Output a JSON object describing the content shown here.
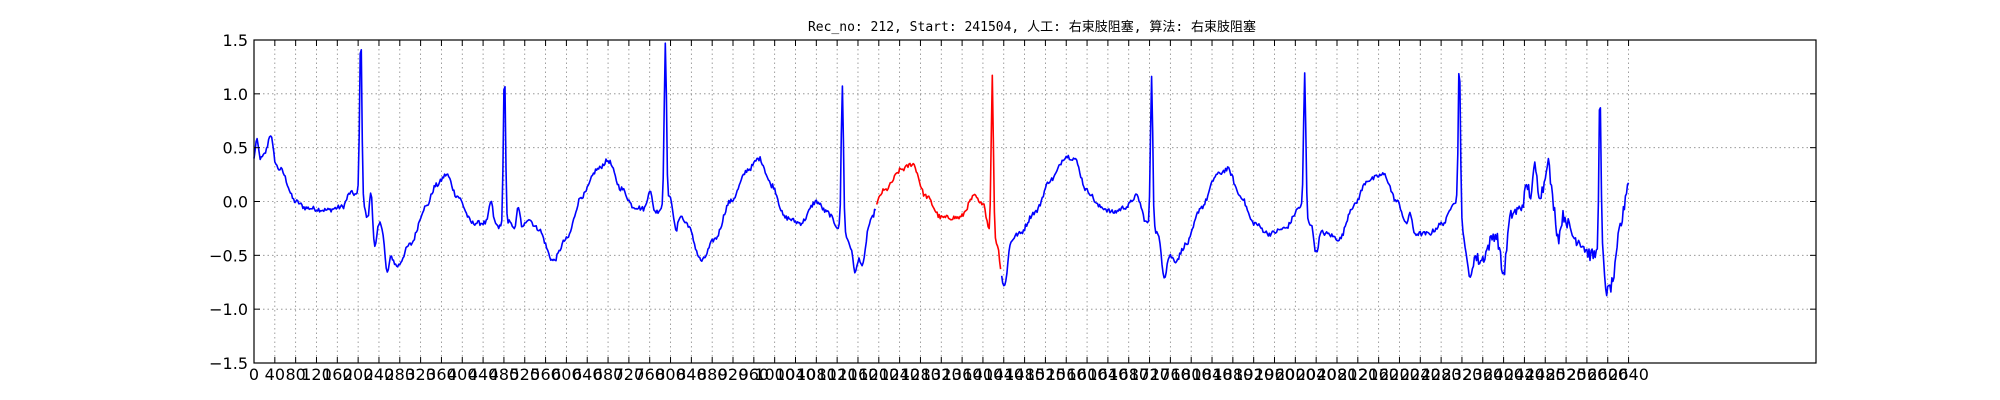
{
  "chart_data": {
    "type": "line",
    "title": "Rec_no: 212, Start: 241504, 人工: 右束肢阻塞, 算法: 右束肢阻塞",
    "xlabel": "",
    "ylabel": "",
    "xlim": [
      0,
      3000
    ],
    "ylim": [
      -1.5,
      1.5
    ],
    "yticks": [
      -1.5,
      -1.0,
      -0.5,
      0.0,
      0.5,
      1.0,
      1.5
    ],
    "ytick_labels": [
      "−1.5",
      "−1.0",
      "−0.5",
      "0.0",
      "0.5",
      "1.0",
      "1.5"
    ],
    "xtick_step": 40,
    "xtick_max": 2640,
    "grid": true,
    "grid_style": "dotted",
    "colors": {
      "normal": "#0000ff",
      "highlight": "#ff0000",
      "axes": "#000000",
      "grid": "#888888"
    },
    "highlight_segment": {
      "x_start": 1195,
      "x_end": 1435
    },
    "baseline": {
      "start_x": 0,
      "end_x": 2640,
      "knots": [
        [
          0,
          0.3
        ],
        [
          25,
          0.45
        ],
        [
          50,
          0.3
        ],
        [
          80,
          0.0
        ],
        [
          100,
          -0.06
        ],
        [
          140,
          -0.08
        ],
        [
          170,
          -0.05
        ],
        [
          185,
          0.08
        ],
        [
          205,
          0.05
        ],
        [
          220,
          -0.18
        ],
        [
          245,
          -0.2
        ],
        [
          275,
          -0.6
        ],
        [
          300,
          -0.4
        ],
        [
          330,
          -0.05
        ],
        [
          350,
          0.15
        ],
        [
          370,
          0.25
        ],
        [
          390,
          0.05
        ],
        [
          420,
          -0.2
        ],
        [
          455,
          -0.2
        ],
        [
          480,
          -0.25
        ],
        [
          510,
          0.0
        ],
        [
          525,
          -0.15
        ],
        [
          545,
          -0.25
        ],
        [
          575,
          -0.55
        ],
        [
          600,
          -0.35
        ],
        [
          630,
          0.05
        ],
        [
          660,
          0.3
        ],
        [
          680,
          0.38
        ],
        [
          705,
          0.12
        ],
        [
          730,
          -0.05
        ],
        [
          770,
          -0.1
        ],
        [
          805,
          0.05
        ],
        [
          830,
          -0.2
        ],
        [
          860,
          -0.55
        ],
        [
          885,
          -0.35
        ],
        [
          915,
          0.0
        ],
        [
          950,
          0.3
        ],
        [
          970,
          0.4
        ],
        [
          995,
          0.15
        ],
        [
          1020,
          -0.15
        ],
        [
          1050,
          -0.2
        ],
        [
          1080,
          0.0
        ],
        [
          1100,
          -0.1
        ],
        [
          1125,
          -0.25
        ],
        [
          1155,
          -0.45
        ],
        [
          1180,
          -0.2
        ],
        [
          1210,
          0.1
        ],
        [
          1245,
          0.3
        ],
        [
          1265,
          0.35
        ],
        [
          1290,
          0.05
        ],
        [
          1320,
          -0.15
        ],
        [
          1355,
          -0.15
        ],
        [
          1385,
          0.05
        ],
        [
          1400,
          -0.1
        ],
        [
          1420,
          -0.35
        ],
        [
          1440,
          -0.42
        ],
        [
          1470,
          -0.3
        ],
        [
          1500,
          -0.1
        ],
        [
          1530,
          0.2
        ],
        [
          1560,
          0.42
        ],
        [
          1575,
          0.4
        ],
        [
          1600,
          0.1
        ],
        [
          1625,
          -0.05
        ],
        [
          1650,
          -0.1
        ],
        [
          1675,
          -0.05
        ],
        [
          1695,
          0.05
        ],
        [
          1715,
          -0.2
        ],
        [
          1740,
          -0.3
        ],
        [
          1770,
          -0.55
        ],
        [
          1790,
          -0.4
        ],
        [
          1820,
          -0.05
        ],
        [
          1850,
          0.25
        ],
        [
          1870,
          0.3
        ],
        [
          1895,
          0.05
        ],
        [
          1920,
          -0.2
        ],
        [
          1950,
          -0.3
        ],
        [
          1980,
          -0.25
        ],
        [
          2010,
          -0.05
        ],
        [
          2030,
          -0.2
        ],
        [
          2060,
          -0.3
        ],
        [
          2085,
          -0.35
        ],
        [
          2110,
          -0.05
        ],
        [
          2140,
          0.2
        ],
        [
          2170,
          0.25
        ],
        [
          2195,
          0.0
        ],
        [
          2220,
          -0.3
        ],
        [
          2255,
          -0.3
        ],
        [
          2285,
          -0.2
        ],
        [
          2305,
          0.0
        ],
        [
          2330,
          -0.4
        ],
        [
          2355,
          -0.55
        ],
        [
          2385,
          -0.3
        ],
        [
          2420,
          -0.1
        ],
        [
          2450,
          0.0
        ],
        [
          2480,
          0.1
        ],
        [
          2510,
          -0.1
        ],
        [
          2540,
          -0.35
        ],
        [
          2570,
          -0.5
        ],
        [
          2600,
          -0.45
        ],
        [
          2625,
          -0.2
        ],
        [
          2640,
          0.18
        ]
      ]
    },
    "features": [
      {
        "x": 5,
        "amp": 0.25,
        "width": 5
      },
      {
        "x": 32,
        "amp": 0.2,
        "width": 6
      },
      {
        "x": 205,
        "amp": 1.5,
        "width": 3
      },
      {
        "x": 225,
        "amp": 0.3,
        "width": 4
      },
      {
        "x": 232,
        "amp": -0.25,
        "width": 5
      },
      {
        "x": 255,
        "amp": -0.35,
        "width": 6
      },
      {
        "x": 455,
        "amp": 0.2,
        "width": 5
      },
      {
        "x": 481,
        "amp": 1.45,
        "width": 3
      },
      {
        "x": 500,
        "amp": -0.2,
        "width": 5
      },
      {
        "x": 515,
        "amp": -0.2,
        "width": 6
      },
      {
        "x": 760,
        "amp": 0.2,
        "width": 6
      },
      {
        "x": 790,
        "amp": 1.5,
        "width": 3
      },
      {
        "x": 810,
        "amp": -0.3,
        "width": 6
      },
      {
        "x": 1130,
        "amp": 1.35,
        "width": 3
      },
      {
        "x": 1155,
        "amp": -0.2,
        "width": 6
      },
      {
        "x": 1170,
        "amp": -0.3,
        "width": 7
      },
      {
        "x": 1400,
        "amp": 0.1,
        "width": 5
      },
      {
        "x": 1418,
        "amp": 1.5,
        "width": 3
      },
      {
        "x": 1436,
        "amp": -0.2,
        "width": 6
      },
      {
        "x": 1443,
        "amp": -0.3,
        "width": 6
      },
      {
        "x": 1724,
        "amp": 1.4,
        "width": 3
      },
      {
        "x": 1748,
        "amp": -0.35,
        "width": 7
      },
      {
        "x": 2018,
        "amp": 1.3,
        "width": 3
      },
      {
        "x": 2040,
        "amp": -0.25,
        "width": 6
      },
      {
        "x": 2220,
        "amp": 0.2,
        "width": 5
      },
      {
        "x": 2315,
        "amp": 1.45,
        "width": 3
      },
      {
        "x": 2335,
        "amp": -0.3,
        "width": 6
      },
      {
        "x": 2400,
        "amp": -0.45,
        "width": 8
      },
      {
        "x": 2445,
        "amp": 0.15,
        "width": 6
      },
      {
        "x": 2460,
        "amp": 0.3,
        "width": 5
      },
      {
        "x": 2485,
        "amp": 0.3,
        "width": 6
      },
      {
        "x": 2505,
        "amp": -0.25,
        "width": 6
      },
      {
        "x": 2585,
        "amp": 1.45,
        "width": 3
      },
      {
        "x": 2598,
        "amp": -0.35,
        "width": 6
      },
      {
        "x": 2607,
        "amp": -0.3,
        "width": 6
      },
      {
        "x": 2615,
        "amp": -0.25,
        "width": 6
      }
    ],
    "noise": {
      "amplitude": 0.045,
      "noisy_amplitude": 0.12,
      "noisy_from_x": 2340
    }
  }
}
